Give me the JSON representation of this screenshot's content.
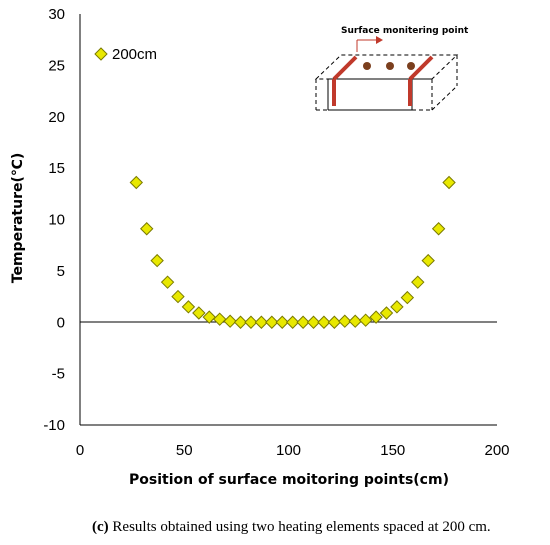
{
  "chart_data": {
    "type": "scatter",
    "xlabel": "Position of surface moitoring points(cm)",
    "ylabel": "Temperature(℃)",
    "xlim": [
      0,
      200
    ],
    "ylim": [
      -10,
      30
    ],
    "xticks": [
      "0",
      "50",
      "100",
      "150",
      "200"
    ],
    "yticks": [
      "-10",
      "-5",
      "0",
      "5",
      "10",
      "15",
      "20",
      "25",
      "30"
    ],
    "grid": false,
    "legend": "top-left",
    "series": [
      {
        "name": "200cm",
        "marker": "diamond",
        "color": "#e8e800",
        "points": [
          [
            27,
            13.6
          ],
          [
            32,
            9.1
          ],
          [
            37,
            6.0
          ],
          [
            42,
            3.9
          ],
          [
            47,
            2.5
          ],
          [
            52,
            1.5
          ],
          [
            57,
            0.9
          ],
          [
            62,
            0.5
          ],
          [
            67,
            0.3
          ],
          [
            72,
            0.1
          ],
          [
            77,
            0.0
          ],
          [
            82,
            0.0
          ],
          [
            87,
            0.0
          ],
          [
            92,
            0.0
          ],
          [
            97,
            0.0
          ],
          [
            102,
            0.0
          ],
          [
            107,
            0.0
          ],
          [
            112,
            0.0
          ],
          [
            117,
            0.0
          ],
          [
            122,
            0.0
          ],
          [
            127,
            0.1
          ],
          [
            132,
            0.1
          ],
          [
            137,
            0.2
          ],
          [
            142,
            0.5
          ],
          [
            147,
            0.9
          ],
          [
            152,
            1.5
          ],
          [
            157,
            2.4
          ],
          [
            162,
            3.9
          ],
          [
            167,
            6.0
          ],
          [
            172,
            9.1
          ],
          [
            177,
            13.6
          ]
        ]
      }
    ],
    "inset_label": "Surface monitering point"
  },
  "caption": {
    "tag": "(c)",
    "text": " Results obtained using two heating elements spaced at 200 cm."
  },
  "colors": {
    "marker_fill": "#e8e800",
    "marker_stroke": "#7a7a00",
    "heater": "#c0392b",
    "dots": "#7b3f1e"
  }
}
